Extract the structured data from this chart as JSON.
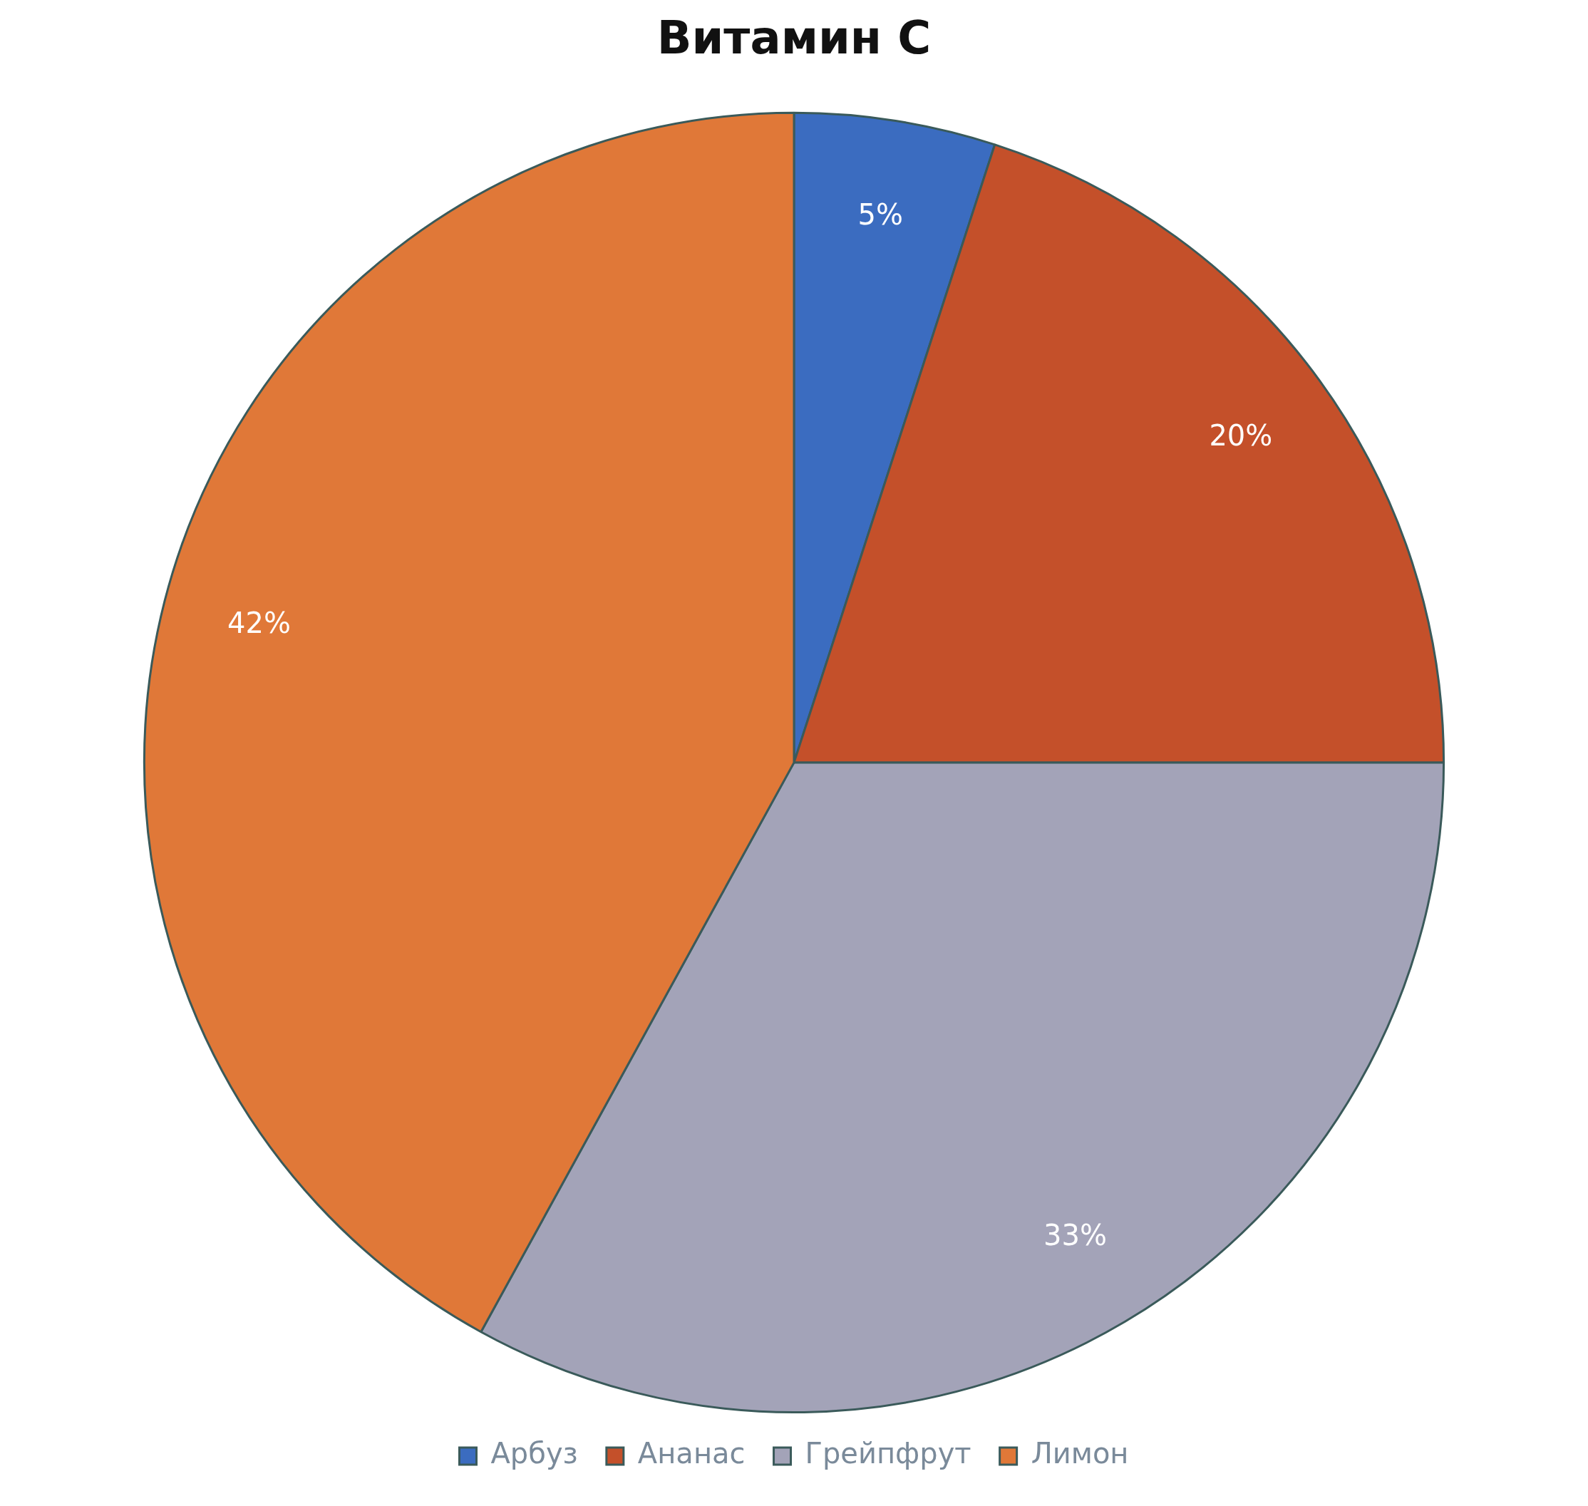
{
  "chart_data": {
    "type": "pie",
    "title": "Витамин C",
    "categories": [
      "Арбуз",
      "Ананас",
      "Грейпфрут",
      "Лимон"
    ],
    "values": [
      5,
      20,
      33,
      42
    ],
    "colors": [
      "#3b6cc0",
      "#c4502a",
      "#a3a3b8",
      "#e07838"
    ],
    "value_labels": [
      "5%",
      "20%",
      "33%",
      "42%"
    ],
    "legend": "bottom"
  }
}
